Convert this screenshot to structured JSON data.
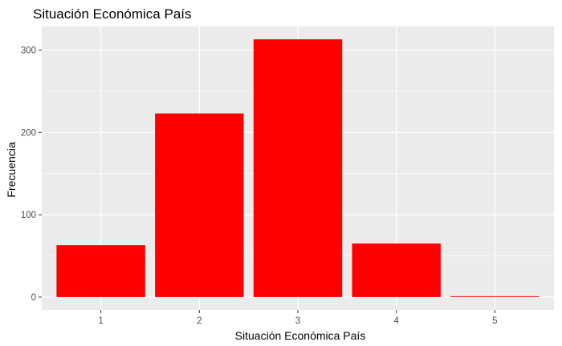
{
  "chart_data": {
    "type": "bar",
    "title": "Situación Económica País",
    "xlabel": "Situación Económica País",
    "ylabel": "Frecuencia",
    "categories": [
      "1",
      "2",
      "3",
      "4",
      "5"
    ],
    "values": [
      63,
      223,
      313,
      65,
      1
    ],
    "yticks": [
      0,
      100,
      200,
      300
    ],
    "ylim": [
      -15.65,
      328.65
    ],
    "grid": true,
    "bar_color": "#ff0000",
    "panel_background": "#ebebeb",
    "grid_color": "#ffffff"
  }
}
